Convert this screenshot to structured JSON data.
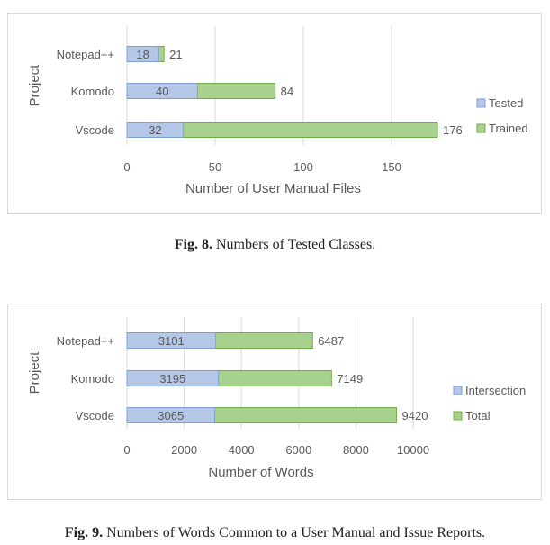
{
  "figures": [
    {
      "caption_label": "Fig. 8.",
      "caption_text": "Numbers of Tested Classes.",
      "chart_data": {
        "type": "bar",
        "orientation": "horizontal",
        "stacked": false,
        "overlap": true,
        "categories": [
          "Notepad++",
          "Komodo",
          "Vscode"
        ],
        "series": [
          {
            "name": "Tested",
            "values": [
              18,
              40,
              32
            ],
            "color": "#b4c7e7",
            "stroke": "#7f9fd4"
          },
          {
            "name": "Trained",
            "values": [
              21,
              84,
              176
            ],
            "color": "#a9d18e",
            "stroke": "#70ad47"
          }
        ],
        "xlabel": "Number of User Manual Files",
        "ylabel": "Project",
        "xlim": [
          0,
          176
        ],
        "xticks": [
          0,
          50,
          100,
          150
        ],
        "grid": "vertical",
        "legend": "right"
      }
    },
    {
      "caption_label": "Fig. 9.",
      "caption_text": "Numbers of Words Common to a User Manual and Issue Reports.",
      "chart_data": {
        "type": "bar",
        "orientation": "horizontal",
        "stacked": false,
        "overlap": true,
        "categories": [
          "Notepad++",
          "Komodo",
          "Vscode"
        ],
        "series": [
          {
            "name": "Intersection",
            "values": [
              3101,
              3195,
              3065
            ],
            "color": "#b4c7e7",
            "stroke": "#7f9fd4"
          },
          {
            "name": "Total",
            "values": [
              6487,
              7149,
              9420
            ],
            "color": "#a9d18e",
            "stroke": "#70ad47"
          }
        ],
        "xlabel": "Number of Words",
        "ylabel": "Project",
        "xlim": [
          0,
          10000
        ],
        "xticks": [
          0,
          2000,
          4000,
          6000,
          8000,
          10000
        ],
        "grid": "vertical",
        "legend": "right"
      }
    }
  ]
}
